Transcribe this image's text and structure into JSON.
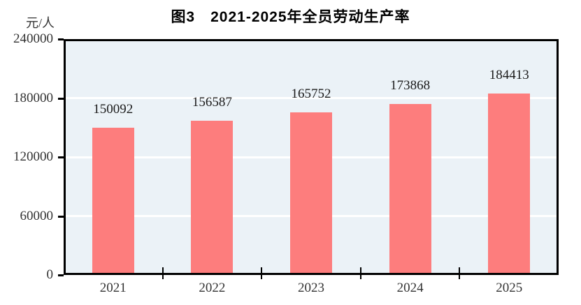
{
  "title": "图3　2021-2025年全员劳动生产率",
  "unit_label": "元/人",
  "colors": {
    "bar": "#FD7D7D",
    "plot_bg": "#EBF2F7",
    "gridline": "#FFFFFF",
    "axis": "#000000",
    "tick_text": "#333333",
    "value_text": "#1A1A1A",
    "title_text": "#000000"
  },
  "chart_data": {
    "type": "bar",
    "title": "图3　2021-2025年全员劳动生产率",
    "categories": [
      "2021",
      "2022",
      "2023",
      "2024",
      "2025"
    ],
    "values": [
      150092,
      156587,
      165752,
      173868,
      184413
    ],
    "xlabel": "",
    "ylabel": "元/人",
    "ylim": [
      0,
      240000
    ],
    "yticks": [
      0,
      60000,
      120000,
      180000,
      240000
    ],
    "grid": true,
    "gridline_color": "#FFFFFF",
    "data_labels": true,
    "legend": false
  }
}
